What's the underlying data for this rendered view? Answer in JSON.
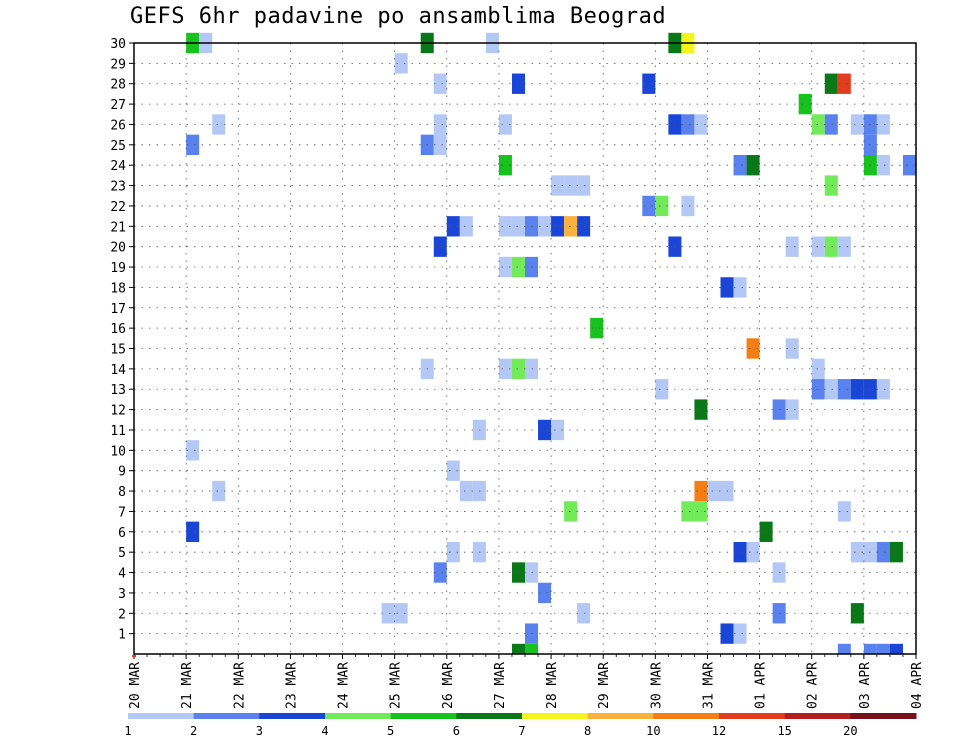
{
  "title": "GEFS 6hr padavine po ansamblima Beograd",
  "chart_data": {
    "type": "heatmap",
    "title": "GEFS 6hr padavine po ansamblima Beograd",
    "x_ticks": [
      "20 MAR",
      "21 MAR",
      "22 MAR",
      "23 MAR",
      "24 MAR",
      "25 MAR",
      "26 MAR",
      "27 MAR",
      "28 MAR",
      "29 MAR",
      "30 MAR",
      "31 MAR",
      "01 APR",
      "02 APR",
      "03 APR",
      "04 APR"
    ],
    "xlim": [
      "20 MAR",
      "04 APR"
    ],
    "steps_per_day": 4,
    "y_ticks": [
      1,
      2,
      3,
      4,
      5,
      6,
      7,
      8,
      9,
      10,
      11,
      12,
      13,
      14,
      15,
      16,
      17,
      18,
      19,
      20,
      21,
      22,
      23,
      24,
      25,
      26,
      27,
      28,
      29,
      30
    ],
    "ylim": [
      0,
      30
    ],
    "grid": true,
    "colorbar": {
      "labels": [
        "1",
        "2",
        "3",
        "4",
        "5",
        "6",
        "7",
        "8",
        "10",
        "12",
        "15",
        "20"
      ],
      "colors": [
        "#b4c8f5",
        "#5a82ee",
        "#1a46d8",
        "#72ea5a",
        "#18c21e",
        "#0a7818",
        "#f6f41e",
        "#fbb23c",
        "#f47d14",
        "#e23c1e",
        "#b41e1e",
        "#78101a"
      ]
    },
    "cells": [
      [
        "21 MAR 00Z",
        30,
        5
      ],
      [
        "21 MAR 06Z",
        30,
        1
      ],
      [
        "21 MAR 00Z",
        25,
        2
      ],
      [
        "21 MAR 12Z",
        26,
        1
      ],
      [
        "21 MAR 00Z",
        10,
        1
      ],
      [
        "21 MAR 12Z",
        8,
        1
      ],
      [
        "21 MAR 00Z",
        6,
        3
      ],
      [
        "25 MAR 00Z",
        29,
        1
      ],
      [
        "25 MAR 12Z",
        30,
        6
      ],
      [
        "25 MAR 18Z",
        28,
        1
      ],
      [
        "25 MAR 18Z",
        26,
        1
      ],
      [
        "25 MAR 12Z",
        25,
        2
      ],
      [
        "25 MAR 18Z",
        25,
        1
      ],
      [
        "25 MAR 12Z",
        14,
        1
      ],
      [
        "24 MAR 18Z",
        2,
        1
      ],
      [
        "25 MAR 00Z",
        2,
        1
      ],
      [
        "25 MAR 18Z",
        20,
        3
      ],
      [
        "26 MAR 00Z",
        9,
        1
      ],
      [
        "26 MAR 00Z",
        5,
        1
      ],
      [
        "25 MAR 18Z",
        4,
        2
      ],
      [
        "26 MAR 00Z",
        21,
        3
      ],
      [
        "26 MAR 06Z",
        21,
        1
      ],
      [
        "26 MAR 12Z",
        11,
        1
      ],
      [
        "26 MAR 06Z",
        8,
        1
      ],
      [
        "26 MAR 12Z",
        8,
        1
      ],
      [
        "26 MAR 12Z",
        5,
        1
      ],
      [
        "26 MAR 18Z",
        30,
        1
      ],
      [
        "27 MAR 06Z",
        28,
        3
      ],
      [
        "27 MAR 00Z",
        26,
        1
      ],
      [
        "27 MAR 00Z",
        24,
        5
      ],
      [
        "27 MAR 06Z",
        0,
        6
      ],
      [
        "27 MAR 12Z",
        0,
        5
      ],
      [
        "27 MAR 00Z",
        21,
        1
      ],
      [
        "27 MAR 06Z",
        21,
        1
      ],
      [
        "27 MAR 12Z",
        21,
        2
      ],
      [
        "27 MAR 18Z",
        21,
        1
      ],
      [
        "28 MAR 00Z",
        21,
        3
      ],
      [
        "28 MAR 06Z",
        21,
        8
      ],
      [
        "28 MAR 12Z",
        21,
        3
      ],
      [
        "27 MAR 00Z",
        19,
        1
      ],
      [
        "27 MAR 06Z",
        19,
        4
      ],
      [
        "27 MAR 12Z",
        19,
        2
      ],
      [
        "27 MAR 00Z",
        14,
        1
      ],
      [
        "27 MAR 06Z",
        14,
        4
      ],
      [
        "27 MAR 12Z",
        14,
        1
      ],
      [
        "27 MAR 18Z",
        11,
        3
      ],
      [
        "28 MAR 00Z",
        11,
        1
      ],
      [
        "28 MAR 06Z",
        7,
        4
      ],
      [
        "27 MAR 06Z",
        4,
        6
      ],
      [
        "27 MAR 12Z",
        4,
        1
      ],
      [
        "27 MAR 18Z",
        3,
        2
      ],
      [
        "27 MAR 12Z",
        1,
        2
      ],
      [
        "28 MAR 00Z",
        23,
        1
      ],
      [
        "28 MAR 06Z",
        23,
        1
      ],
      [
        "28 MAR 12Z",
        23,
        1
      ],
      [
        "28 MAR 18Z",
        16,
        5
      ],
      [
        "28 MAR 12Z",
        2,
        1
      ],
      [
        "29 MAR 18Z",
        28,
        3
      ],
      [
        "29 MAR 18Z",
        22,
        2
      ],
      [
        "30 MAR 00Z",
        22,
        4
      ],
      [
        "30 MAR 12Z",
        22,
        1
      ],
      [
        "30 MAR 06Z",
        30,
        6
      ],
      [
        "30 MAR 12Z",
        30,
        7
      ],
      [
        "30 MAR 06Z",
        26,
        3
      ],
      [
        "30 MAR 12Z",
        26,
        2
      ],
      [
        "30 MAR 18Z",
        26,
        1
      ],
      [
        "30 MAR 06Z",
        20,
        3
      ],
      [
        "30 MAR 00Z",
        13,
        1
      ],
      [
        "30 MAR 18Z",
        12,
        6
      ],
      [
        "30 MAR 18Z",
        8,
        9
      ],
      [
        "31 MAR 00Z",
        8,
        1
      ],
      [
        "31 MAR 06Z",
        8,
        1
      ],
      [
        "30 MAR 12Z",
        7,
        4
      ],
      [
        "30 MAR 18Z",
        7,
        4
      ],
      [
        "31 MAR 12Z",
        24,
        2
      ],
      [
        "31 MAR 18Z",
        24,
        6
      ],
      [
        "31 MAR 06Z",
        18,
        3
      ],
      [
        "31 MAR 12Z",
        18,
        1
      ],
      [
        "31 MAR 18Z",
        15,
        9
      ],
      [
        "31 MAR 06Z",
        1,
        3
      ],
      [
        "31 MAR 12Z",
        1,
        1
      ],
      [
        "01 APR 00Z",
        6,
        6
      ],
      [
        "31 MAR 12Z",
        5,
        3
      ],
      [
        "31 MAR 18Z",
        5,
        1
      ],
      [
        "01 APR 18Z",
        27,
        5
      ],
      [
        "02 APR 06Z",
        28,
        6
      ],
      [
        "02 APR 12Z",
        28,
        10
      ],
      [
        "02 APR 00Z",
        26,
        4
      ],
      [
        "02 APR 06Z",
        26,
        2
      ],
      [
        "02 APR 06Z",
        23,
        4
      ],
      [
        "01 APR 12Z",
        20,
        1
      ],
      [
        "02 APR 00Z",
        20,
        1
      ],
      [
        "02 APR 06Z",
        20,
        4
      ],
      [
        "02 APR 12Z",
        20,
        1
      ],
      [
        "01 APR 12Z",
        15,
        1
      ],
      [
        "02 APR 00Z",
        14,
        1
      ],
      [
        "02 APR 00Z",
        13,
        2
      ],
      [
        "02 APR 06Z",
        13,
        1
      ],
      [
        "02 APR 12Z",
        13,
        2
      ],
      [
        "02 APR 18Z",
        13,
        3
      ],
      [
        "03 APR 00Z",
        13,
        3
      ],
      [
        "03 APR 06Z",
        13,
        1
      ],
      [
        "01 APR 06Z",
        12,
        2
      ],
      [
        "01 APR 12Z",
        12,
        1
      ],
      [
        "01 APR 06Z",
        4,
        1
      ],
      [
        "01 APR 06Z",
        2,
        2
      ],
      [
        "02 APR 12Z",
        7,
        1
      ],
      [
        "02 APR 18Z",
        2,
        6
      ],
      [
        "02 APR 12Z",
        0,
        2
      ],
      [
        "02 APR 18Z",
        26,
        1
      ],
      [
        "03 APR 00Z",
        26,
        2
      ],
      [
        "03 APR 06Z",
        26,
        1
      ],
      [
        "03 APR 00Z",
        25,
        2
      ],
      [
        "03 APR 00Z",
        24,
        5
      ],
      [
        "03 APR 06Z",
        24,
        1
      ],
      [
        "03 APR 18Z",
        24,
        2
      ],
      [
        "02 APR 18Z",
        5,
        1
      ],
      [
        "03 APR 00Z",
        5,
        1
      ],
      [
        "03 APR 06Z",
        5,
        2
      ],
      [
        "03 APR 12Z",
        5,
        6
      ],
      [
        "03 APR 00Z",
        0,
        2
      ],
      [
        "03 APR 06Z",
        0,
        2
      ],
      [
        "03 APR 12Z",
        0,
        3
      ]
    ]
  }
}
